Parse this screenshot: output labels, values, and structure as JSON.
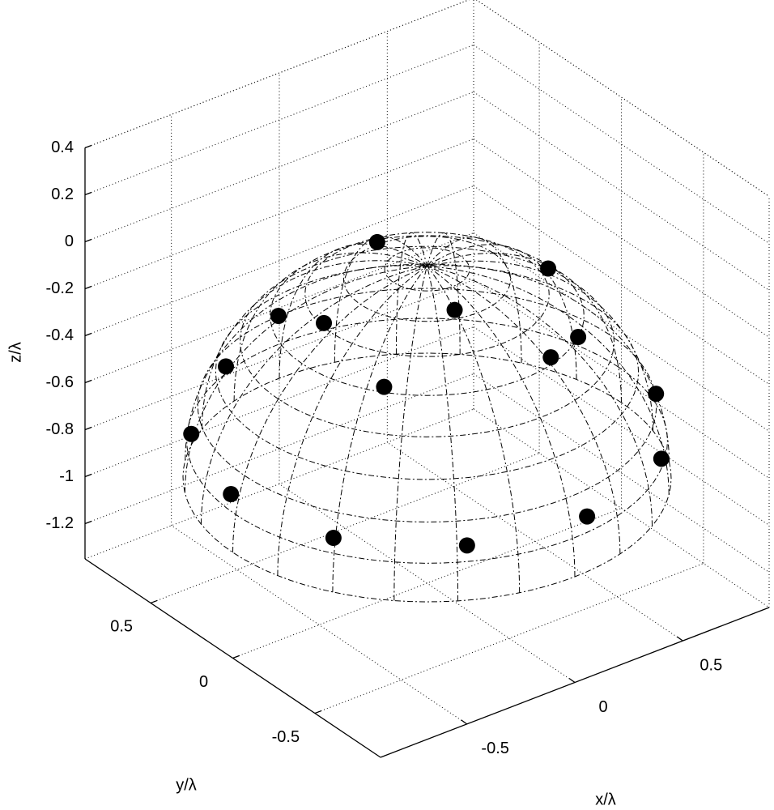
{
  "chart_data": {
    "type": "scatter3d",
    "xlabel": "x/λ",
    "ylabel": "y/λ",
    "zlabel": "z/λ",
    "xlim": [
      -0.9,
      0.9
    ],
    "ylim": [
      -0.9,
      0.9
    ],
    "zlim": [
      -1.35,
      0.4
    ],
    "xticks": [
      -0.5,
      0,
      0.5
    ],
    "yticks": [
      -0.5,
      0,
      0.5
    ],
    "zticks": [
      -1.2,
      -1,
      -0.8,
      -0.6,
      -0.4,
      -0.2,
      0,
      0.2,
      0.4
    ],
    "grid": true,
    "series": [
      {
        "color": "#000000",
        "x": [
          0.02,
          0.5,
          -0.46,
          -0.44,
          -0.07,
          0.35,
          0.17,
          -0.45,
          -0.62,
          0.68,
          -0.75,
          0.72,
          -0.65,
          0.3,
          -0.54,
          -0.18
        ],
        "y": [
          0.33,
          -0.08,
          0.3,
          0.05,
          -0.26,
          -0.46,
          -0.53,
          -0.33,
          0.41,
          -0.5,
          0.45,
          -0.48,
          0.34,
          -0.58,
          -0.14,
          -0.48
        ],
        "z": [
          -0.06,
          -0.15,
          -0.19,
          -0.11,
          -0.04,
          -0.21,
          -0.2,
          -0.2,
          -0.4,
          -0.55,
          -0.66,
          -0.85,
          -0.9,
          -0.9,
          -0.9,
          -0.9
        ]
      }
    ]
  }
}
